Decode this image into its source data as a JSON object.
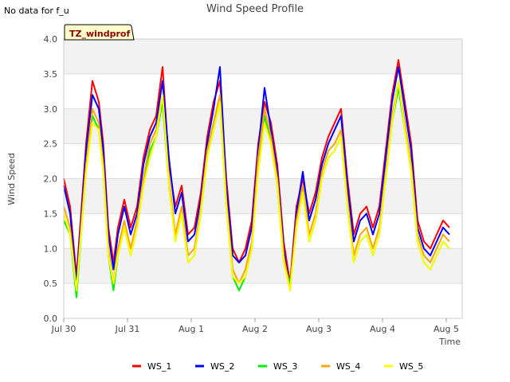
{
  "status_note": "No data for f_u",
  "chart_data": {
    "type": "line",
    "title": "Wind Speed Profile",
    "xlabel": "Time",
    "ylabel": "Wind Speed",
    "ylim": [
      0.0,
      4.0
    ],
    "xlim": [
      0,
      6.25
    ],
    "y_ticks": [
      "0.0",
      "0.5",
      "1.0",
      "1.5",
      "2.0",
      "2.5",
      "3.0",
      "3.5",
      "4.0"
    ],
    "x_ticks": [
      {
        "value": 0,
        "label": "Jul 30"
      },
      {
        "value": 1,
        "label": "Jul 31"
      },
      {
        "value": 2,
        "label": "Aug 1"
      },
      {
        "value": 3,
        "label": "Aug 2"
      },
      {
        "value": 4,
        "label": "Aug 3"
      },
      {
        "value": 5,
        "label": "Aug 4"
      },
      {
        "value": 6,
        "label": "Aug 5"
      }
    ],
    "annotation": "TZ_windprof",
    "grid": true,
    "banded_background": true,
    "legend_position": "bottom-center",
    "x_unit": "days since Jul 30",
    "x": [
      0.0,
      0.1,
      0.2,
      0.28,
      0.35,
      0.45,
      0.55,
      0.62,
      0.7,
      0.78,
      0.85,
      0.95,
      1.05,
      1.15,
      1.25,
      1.35,
      1.45,
      1.55,
      1.65,
      1.75,
      1.85,
      1.95,
      2.05,
      2.15,
      2.25,
      2.35,
      2.45,
      2.55,
      2.65,
      2.75,
      2.85,
      2.95,
      3.05,
      3.15,
      3.25,
      3.35,
      3.45,
      3.55,
      3.65,
      3.75,
      3.85,
      3.95,
      4.05,
      4.15,
      4.25,
      4.35,
      4.45,
      4.55,
      4.65,
      4.75,
      4.85,
      4.95,
      5.05,
      5.15,
      5.25,
      5.35,
      5.45,
      5.55,
      5.65,
      5.75,
      5.85,
      5.95,
      6.05
    ],
    "series": [
      {
        "name": "WS_1",
        "color": "#ff0000",
        "values": [
          2.0,
          1.6,
          0.6,
          1.6,
          2.5,
          3.4,
          3.1,
          2.5,
          1.3,
          0.8,
          1.3,
          1.7,
          1.3,
          1.6,
          2.3,
          2.7,
          2.9,
          3.6,
          2.2,
          1.6,
          1.9,
          1.2,
          1.3,
          1.8,
          2.6,
          3.1,
          3.4,
          2.0,
          1.0,
          0.8,
          1.0,
          1.4,
          2.5,
          3.1,
          2.8,
          2.2,
          1.1,
          0.5,
          1.6,
          2.0,
          1.5,
          1.8,
          2.3,
          2.6,
          2.8,
          3.0,
          2.0,
          1.2,
          1.5,
          1.6,
          1.3,
          1.6,
          2.4,
          3.2,
          3.7,
          3.1,
          2.5,
          1.4,
          1.1,
          1.0,
          1.2,
          1.4,
          1.3
        ]
      },
      {
        "name": "WS_2",
        "color": "#0000ff",
        "values": [
          1.9,
          1.5,
          0.5,
          1.5,
          2.4,
          3.2,
          3.0,
          2.4,
          1.2,
          0.7,
          1.2,
          1.6,
          1.2,
          1.5,
          2.2,
          2.6,
          2.8,
          3.4,
          2.3,
          1.5,
          1.8,
          1.1,
          1.2,
          1.7,
          2.5,
          3.0,
          3.6,
          1.9,
          0.9,
          0.8,
          0.9,
          1.3,
          2.4,
          3.3,
          2.7,
          2.1,
          1.0,
          0.4,
          1.5,
          2.1,
          1.4,
          1.7,
          2.2,
          2.5,
          2.7,
          2.9,
          1.9,
          1.1,
          1.4,
          1.5,
          1.2,
          1.5,
          2.3,
          3.1,
          3.6,
          3.0,
          2.4,
          1.3,
          1.0,
          0.9,
          1.1,
          1.3,
          1.2
        ]
      },
      {
        "name": "WS_3",
        "color": "#00ee00",
        "values": [
          1.4,
          1.2,
          0.3,
          1.3,
          2.1,
          2.9,
          2.7,
          2.1,
          0.9,
          0.4,
          0.9,
          1.3,
          0.9,
          1.3,
          1.9,
          2.4,
          2.6,
          3.1,
          1.9,
          1.1,
          1.5,
          0.8,
          0.9,
          1.5,
          2.3,
          2.7,
          3.1,
          1.6,
          0.6,
          0.4,
          0.6,
          1.0,
          2.2,
          2.9,
          2.5,
          1.9,
          0.8,
          0.5,
          1.3,
          1.9,
          1.1,
          1.4,
          2.0,
          2.3,
          2.4,
          2.6,
          1.6,
          0.8,
          1.1,
          1.2,
          0.9,
          1.2,
          2.0,
          2.8,
          3.3,
          2.7,
          2.1,
          1.1,
          0.8,
          0.7,
          0.9,
          1.1,
          1.0
        ]
      },
      {
        "name": "WS_4",
        "color": "#ffa500",
        "values": [
          1.6,
          1.3,
          0.4,
          1.4,
          2.2,
          3.0,
          2.8,
          2.2,
          1.0,
          0.5,
          1.0,
          1.4,
          1.0,
          1.4,
          2.0,
          2.5,
          2.7,
          3.2,
          2.0,
          1.2,
          1.6,
          0.9,
          1.0,
          1.6,
          2.4,
          2.8,
          3.2,
          1.7,
          0.7,
          0.5,
          0.7,
          1.1,
          2.3,
          3.0,
          2.6,
          2.0,
          0.9,
          0.4,
          1.4,
          1.9,
          1.2,
          1.5,
          2.1,
          2.4,
          2.5,
          2.7,
          1.7,
          0.9,
          1.2,
          1.3,
          1.0,
          1.3,
          2.1,
          2.9,
          3.4,
          2.8,
          2.2,
          1.2,
          0.9,
          0.8,
          1.0,
          1.2,
          1.1
        ]
      },
      {
        "name": "WS_5",
        "color": "#ffff00",
        "values": [
          1.5,
          1.2,
          0.4,
          1.3,
          2.1,
          2.8,
          2.7,
          2.1,
          0.9,
          0.5,
          0.9,
          1.3,
          0.9,
          1.3,
          1.9,
          2.3,
          2.6,
          3.2,
          1.9,
          1.1,
          1.5,
          0.8,
          0.9,
          1.5,
          2.3,
          2.7,
          3.1,
          1.6,
          0.6,
          0.5,
          0.6,
          1.0,
          2.1,
          2.8,
          2.5,
          1.9,
          0.8,
          0.4,
          1.3,
          1.8,
          1.1,
          1.4,
          2.0,
          2.3,
          2.4,
          2.6,
          1.6,
          0.8,
          1.1,
          1.2,
          0.9,
          1.2,
          2.0,
          2.8,
          3.4,
          2.7,
          2.1,
          1.1,
          0.8,
          0.7,
          0.9,
          1.1,
          1.0
        ]
      }
    ]
  }
}
